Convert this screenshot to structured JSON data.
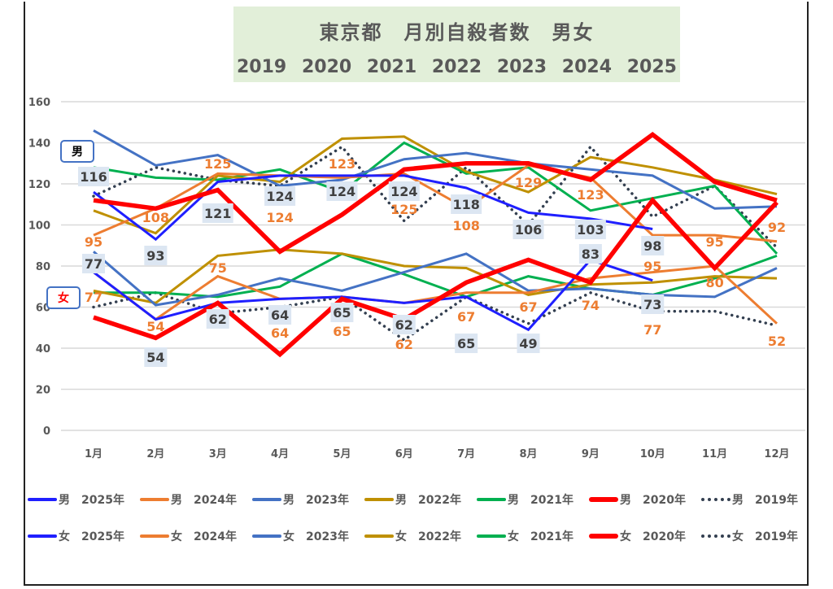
{
  "chart_data": {
    "type": "line",
    "title": "東京都　月別自殺者数　男女",
    "subtitle_years": [
      "2019",
      "2020",
      "2021",
      "2022",
      "2023",
      "2024",
      "2025"
    ],
    "xlabel": "",
    "ylabel": "",
    "ylim": [
      0,
      160
    ],
    "yticks": [
      0,
      20,
      40,
      60,
      80,
      100,
      120,
      140,
      160
    ],
    "grid": true,
    "legend_position": "bottom",
    "categories": [
      "1月",
      "2月",
      "3月",
      "4月",
      "5月",
      "6月",
      "7月",
      "8月",
      "9月",
      "10月",
      "11月",
      "12月"
    ],
    "gender_labels": {
      "male": "男",
      "female": "女"
    },
    "series": [
      {
        "name": "男　2025年",
        "gender": "male",
        "year": "2025",
        "color": "#1f1fff",
        "style": "solid",
        "width": "thin",
        "values": [
          116,
          93,
          121,
          124,
          124,
          124,
          118,
          106,
          103,
          98,
          null,
          null
        ]
      },
      {
        "name": "男　2024年",
        "gender": "male",
        "year": "2024",
        "color": "#ed7d31",
        "style": "solid",
        "width": "thin",
        "values": [
          95,
          108,
          125,
          124,
          123,
          125,
          108,
          129,
          123,
          95,
          95,
          92
        ]
      },
      {
        "name": "男　2023年",
        "gender": "male",
        "year": "2023",
        "color": "#4472c4",
        "style": "solid",
        "width": "thin",
        "values": [
          146,
          129,
          134,
          119,
          122,
          132,
          135,
          130,
          127,
          124,
          108,
          109
        ]
      },
      {
        "name": "男　2022年",
        "gender": "male",
        "year": "2022",
        "color": "#bf9000",
        "style": "solid",
        "width": "thin",
        "values": [
          107,
          96,
          124,
          121,
          142,
          143,
          126,
          116,
          133,
          128,
          122,
          115
        ]
      },
      {
        "name": "男　2021年",
        "gender": "male",
        "year": "2021",
        "color": "#00b050",
        "style": "solid",
        "width": "thin",
        "values": [
          128,
          123,
          122,
          127,
          116,
          140,
          125,
          128,
          107,
          113,
          119,
          86
        ]
      },
      {
        "name": "男　2020年",
        "gender": "male",
        "year": "2020",
        "color": "#ff0000",
        "style": "solid",
        "width": "thick",
        "values": [
          112,
          108,
          117,
          87,
          105,
          127,
          130,
          130,
          122,
          144,
          121,
          112
        ]
      },
      {
        "name": "男　2019年",
        "gender": "male",
        "year": "2019",
        "color": "#333f50",
        "style": "dotted",
        "width": "thin",
        "values": [
          114,
          128,
          122,
          119,
          138,
          102,
          128,
          100,
          138,
          104,
          119,
          89
        ]
      },
      {
        "name": "女　2025年",
        "gender": "female",
        "year": "2025",
        "color": "#1f1fff",
        "style": "solid",
        "width": "thin",
        "values": [
          77,
          54,
          62,
          64,
          65,
          62,
          65,
          49,
          83,
          73,
          null,
          null
        ]
      },
      {
        "name": "女　2024年",
        "gender": "female",
        "year": "2024",
        "color": "#ed7d31",
        "style": "solid",
        "width": "thin",
        "values": [
          77,
          54,
          75,
          64,
          65,
          62,
          67,
          67,
          74,
          77,
          80,
          52
        ]
      },
      {
        "name": "女　2023年",
        "gender": "female",
        "year": "2023",
        "color": "#4472c4",
        "style": "solid",
        "width": "thin",
        "values": [
          87,
          61,
          66,
          74,
          68,
          77,
          86,
          68,
          69,
          66,
          65,
          79
        ]
      },
      {
        "name": "女　2022年",
        "gender": "female",
        "year": "2022",
        "color": "#bf9000",
        "style": "solid",
        "width": "thin",
        "values": [
          68,
          62,
          85,
          88,
          86,
          80,
          79,
          66,
          71,
          72,
          75,
          74
        ]
      },
      {
        "name": "女　2021年",
        "gender": "female",
        "year": "2021",
        "color": "#00b050",
        "style": "solid",
        "width": "thin",
        "values": [
          67,
          67,
          65,
          70,
          86,
          76,
          65,
          75,
          69,
          66,
          74,
          85
        ]
      },
      {
        "name": "女　2020年",
        "gender": "female",
        "year": "2020",
        "color": "#ff0000",
        "style": "solid",
        "width": "thick",
        "values": [
          55,
          45,
          62,
          37,
          64,
          54,
          72,
          83,
          72,
          112,
          79,
          111
        ]
      },
      {
        "name": "女　2019年",
        "gender": "female",
        "year": "2019",
        "color": "#333f50",
        "style": "dotted",
        "width": "thin",
        "values": [
          60,
          67,
          57,
          60,
          65,
          44,
          65,
          52,
          67,
          58,
          58,
          51
        ]
      }
    ],
    "data_labels": {
      "male_2025": [
        "116",
        "93",
        "121",
        "124",
        "124",
        "124",
        "118",
        "106",
        "103",
        "98"
      ],
      "male_2024": [
        "95",
        "108",
        "125",
        "124",
        "123",
        "125",
        "108",
        "129",
        "123",
        "95",
        "95",
        "92"
      ],
      "female_2025": [
        "77",
        "54",
        "62",
        "64",
        "65",
        "62",
        "65",
        "49",
        "83",
        "73"
      ],
      "female_2024": [
        "77",
        "54",
        "75",
        "64",
        "65",
        "62",
        "67",
        "67",
        "74",
        "77",
        "80",
        "52"
      ]
    },
    "label_colors": {
      "dark": "#404040",
      "orange": "#ed7d31",
      "label_bg": "#dce6f2"
    }
  },
  "legend": {
    "rows": [
      [
        {
          "gender": "男",
          "year": "2025年",
          "color": "#1f1fff",
          "style": "solid"
        },
        {
          "gender": "男",
          "year": "2024年",
          "color": "#ed7d31",
          "style": "solid"
        },
        {
          "gender": "男",
          "year": "2023年",
          "color": "#4472c4",
          "style": "solid"
        },
        {
          "gender": "男",
          "year": "2022年",
          "color": "#bf9000",
          "style": "solid"
        },
        {
          "gender": "男",
          "year": "2021年",
          "color": "#00b050",
          "style": "solid"
        },
        {
          "gender": "男",
          "year": "2020年",
          "color": "#ff0000",
          "style": "thick"
        },
        {
          "gender": "男",
          "year": "2019年",
          "color": "#333f50",
          "style": "dotted"
        }
      ],
      [
        {
          "gender": "女",
          "year": "2025年",
          "color": "#1f1fff",
          "style": "solid"
        },
        {
          "gender": "女",
          "year": "2024年",
          "color": "#ed7d31",
          "style": "solid"
        },
        {
          "gender": "女",
          "year": "2023年",
          "color": "#4472c4",
          "style": "solid"
        },
        {
          "gender": "女",
          "year": "2022年",
          "color": "#bf9000",
          "style": "solid"
        },
        {
          "gender": "女",
          "year": "2021年",
          "color": "#00b050",
          "style": "solid"
        },
        {
          "gender": "女",
          "year": "2020年",
          "color": "#ff0000",
          "style": "thick"
        },
        {
          "gender": "女",
          "year": "2019年",
          "color": "#333f50",
          "style": "dotted"
        }
      ]
    ]
  },
  "callouts": {
    "male": "男",
    "female": "女",
    "male_color": "#000000",
    "female_color": "#ff0000"
  }
}
